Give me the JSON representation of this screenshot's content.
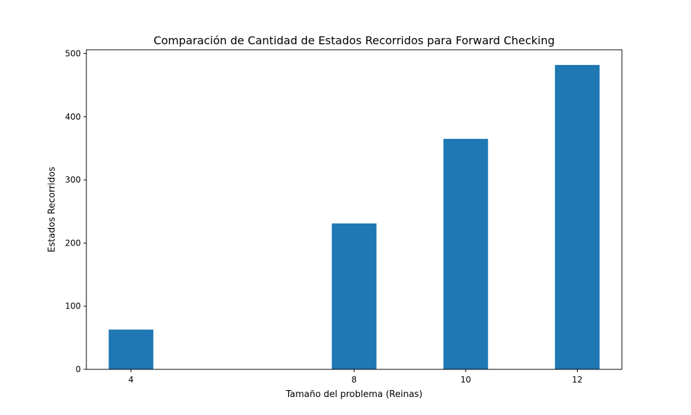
{
  "chart_data": {
    "type": "bar",
    "title": "Comparación de Cantidad de Estados Recorridos para Forward Checking",
    "xlabel": "Tamaño del problema (Reinas)",
    "ylabel": "Estados Recorridos",
    "x": [
      4,
      8,
      10,
      12
    ],
    "values": [
      63,
      231,
      365,
      482
    ],
    "bar_width": 0.8,
    "xlim": [
      3.2,
      12.8
    ],
    "ylim": [
      0,
      506
    ],
    "xticks": [
      4,
      8,
      10,
      12
    ],
    "yticks": [
      0,
      100,
      200,
      300,
      400,
      500
    ],
    "bar_color": "#1f77b4",
    "grid": false,
    "legend": "none"
  }
}
